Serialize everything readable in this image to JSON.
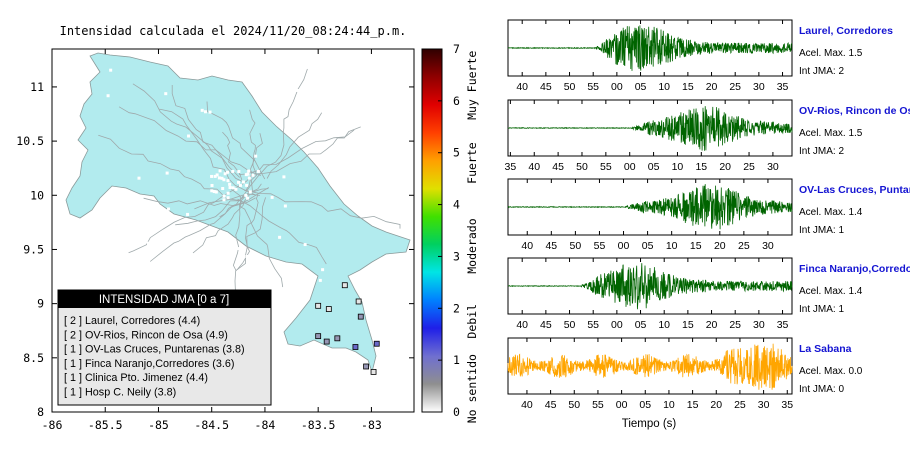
{
  "map": {
    "title": "Intensidad calculada el 2024/11/20_08:24:44_p.m.",
    "x_ticks": [
      "-86",
      "-85.5",
      "-85",
      "-84.5",
      "-84",
      "-83.5",
      "-83"
    ],
    "y_ticks": [
      "8",
      "8.5",
      "9",
      "9.5",
      "10",
      "10.5",
      "11"
    ],
    "xlim": [
      -86,
      -82.6
    ],
    "ylim": [
      8,
      11.35
    ],
    "land_color": "#b2ebee",
    "legend": {
      "title": "INTENSIDAD JMA [0 a 7]",
      "items": [
        "[ 2 ]  Laurel, Corredores (4.4)",
        "[ 2 ]  OV-Rios, Rincon de Osa (4.9)",
        "[ 1 ]  OV-Las Cruces, Puntarenas (3.8)",
        "[ 1 ]  Finca Naranjo,Corredores (3.6)",
        "[ 1 ]  Clinica Pto. Jimenez (4.4)",
        "[ 1 ]  Hosp C. Neily (3.8)"
      ]
    },
    "stations": [
      {
        "lon": -83.15,
        "lat": 8.6,
        "intensity": 2
      },
      {
        "lon": -82.95,
        "lat": 8.63,
        "intensity": 2
      },
      {
        "lon": -83.32,
        "lat": 8.68,
        "intensity": 1
      },
      {
        "lon": -83.05,
        "lat": 8.42,
        "intensity": 1
      },
      {
        "lon": -83.5,
        "lat": 8.7,
        "intensity": 1
      },
      {
        "lon": -83.42,
        "lat": 8.65,
        "intensity": 1
      },
      {
        "lon": -83.1,
        "lat": 8.88,
        "intensity": 1
      },
      {
        "lon": -83.4,
        "lat": 8.95,
        "intensity": 0
      },
      {
        "lon": -83.5,
        "lat": 8.98,
        "intensity": 0
      },
      {
        "lon": -83.12,
        "lat": 9.02,
        "intensity": 0
      },
      {
        "lon": -83.25,
        "lat": 9.17,
        "intensity": 0
      },
      {
        "lon": -82.98,
        "lat": 8.37,
        "intensity": 0
      }
    ]
  },
  "colorbar": {
    "ticks": [
      "0",
      "1",
      "2",
      "3",
      "4",
      "5",
      "6",
      "7"
    ],
    "labels": [
      "No sentido",
      "Debil",
      "Moderado",
      "Fuerte",
      "Muy Fuerte"
    ],
    "colors": [
      "#ffffff",
      "#8f8f8f",
      "#6f6fd0",
      "#1f1fe8",
      "#0080ff",
      "#00e5e5",
      "#00d060",
      "#40e000",
      "#e0e000",
      "#ffa000",
      "#ff4000",
      "#e00000",
      "#900000",
      "#300000"
    ]
  },
  "seismograms": {
    "xlabel": "Tiempo (s)",
    "panels": [
      {
        "station": "Laurel, Corredores",
        "accel": "Acel. Max. 1.5",
        "int": "Int JMA: 2",
        "color": "#006400",
        "ticks": [
          "40",
          "45",
          "50",
          "55",
          "00",
          "05",
          "10",
          "15",
          "20",
          "25",
          "30",
          "35"
        ],
        "t0": 37,
        "t1": 97,
        "onset": 55,
        "peak": 65,
        "amp": 0.95
      },
      {
        "station": "OV-Rios, Rincon de Osa",
        "accel": "Acel. Max. 1.5",
        "int": "Int JMA: 2",
        "color": "#006400",
        "ticks": [
          "35",
          "40",
          "45",
          "50",
          "55",
          "00",
          "05",
          "10",
          "15",
          "20",
          "25",
          "30"
        ],
        "t0": 34.5,
        "t1": 94,
        "onset": 60,
        "peak": 75.5,
        "amp": 0.9
      },
      {
        "station": "OV-Las Cruces, Puntarenas",
        "accel": "Acel. Max. 1.4",
        "int": "Int JMA: 1",
        "color": "#006400",
        "ticks": [
          "40",
          "45",
          "50",
          "55",
          "00",
          "05",
          "10",
          "15",
          "20",
          "25",
          "30"
        ],
        "t0": 36,
        "t1": 95,
        "onset": 60,
        "peak": 78,
        "amp": 0.92
      },
      {
        "station": "Finca Naranjo,Corredores",
        "accel": "Acel. Max. 1.4",
        "int": "Int JMA: 1",
        "color": "#006400",
        "ticks": [
          "40",
          "45",
          "50",
          "55",
          "00",
          "05",
          "10",
          "15",
          "20",
          "25",
          "30",
          "35"
        ],
        "t0": 37,
        "t1": 97,
        "onset": 52,
        "peak": 64,
        "amp": 0.92
      },
      {
        "station": "La Sabana",
        "accel": "Acel. Max. 0.0",
        "int": "Int JMA: 0",
        "color": "#ffa500",
        "ticks": [
          "40",
          "45",
          "50",
          "55",
          "00",
          "05",
          "10",
          "15",
          "20",
          "25",
          "30",
          "35"
        ],
        "t0": 36,
        "t1": 96,
        "onset": 36,
        "peak": 89,
        "amp": 0.95,
        "noise": true
      }
    ]
  }
}
